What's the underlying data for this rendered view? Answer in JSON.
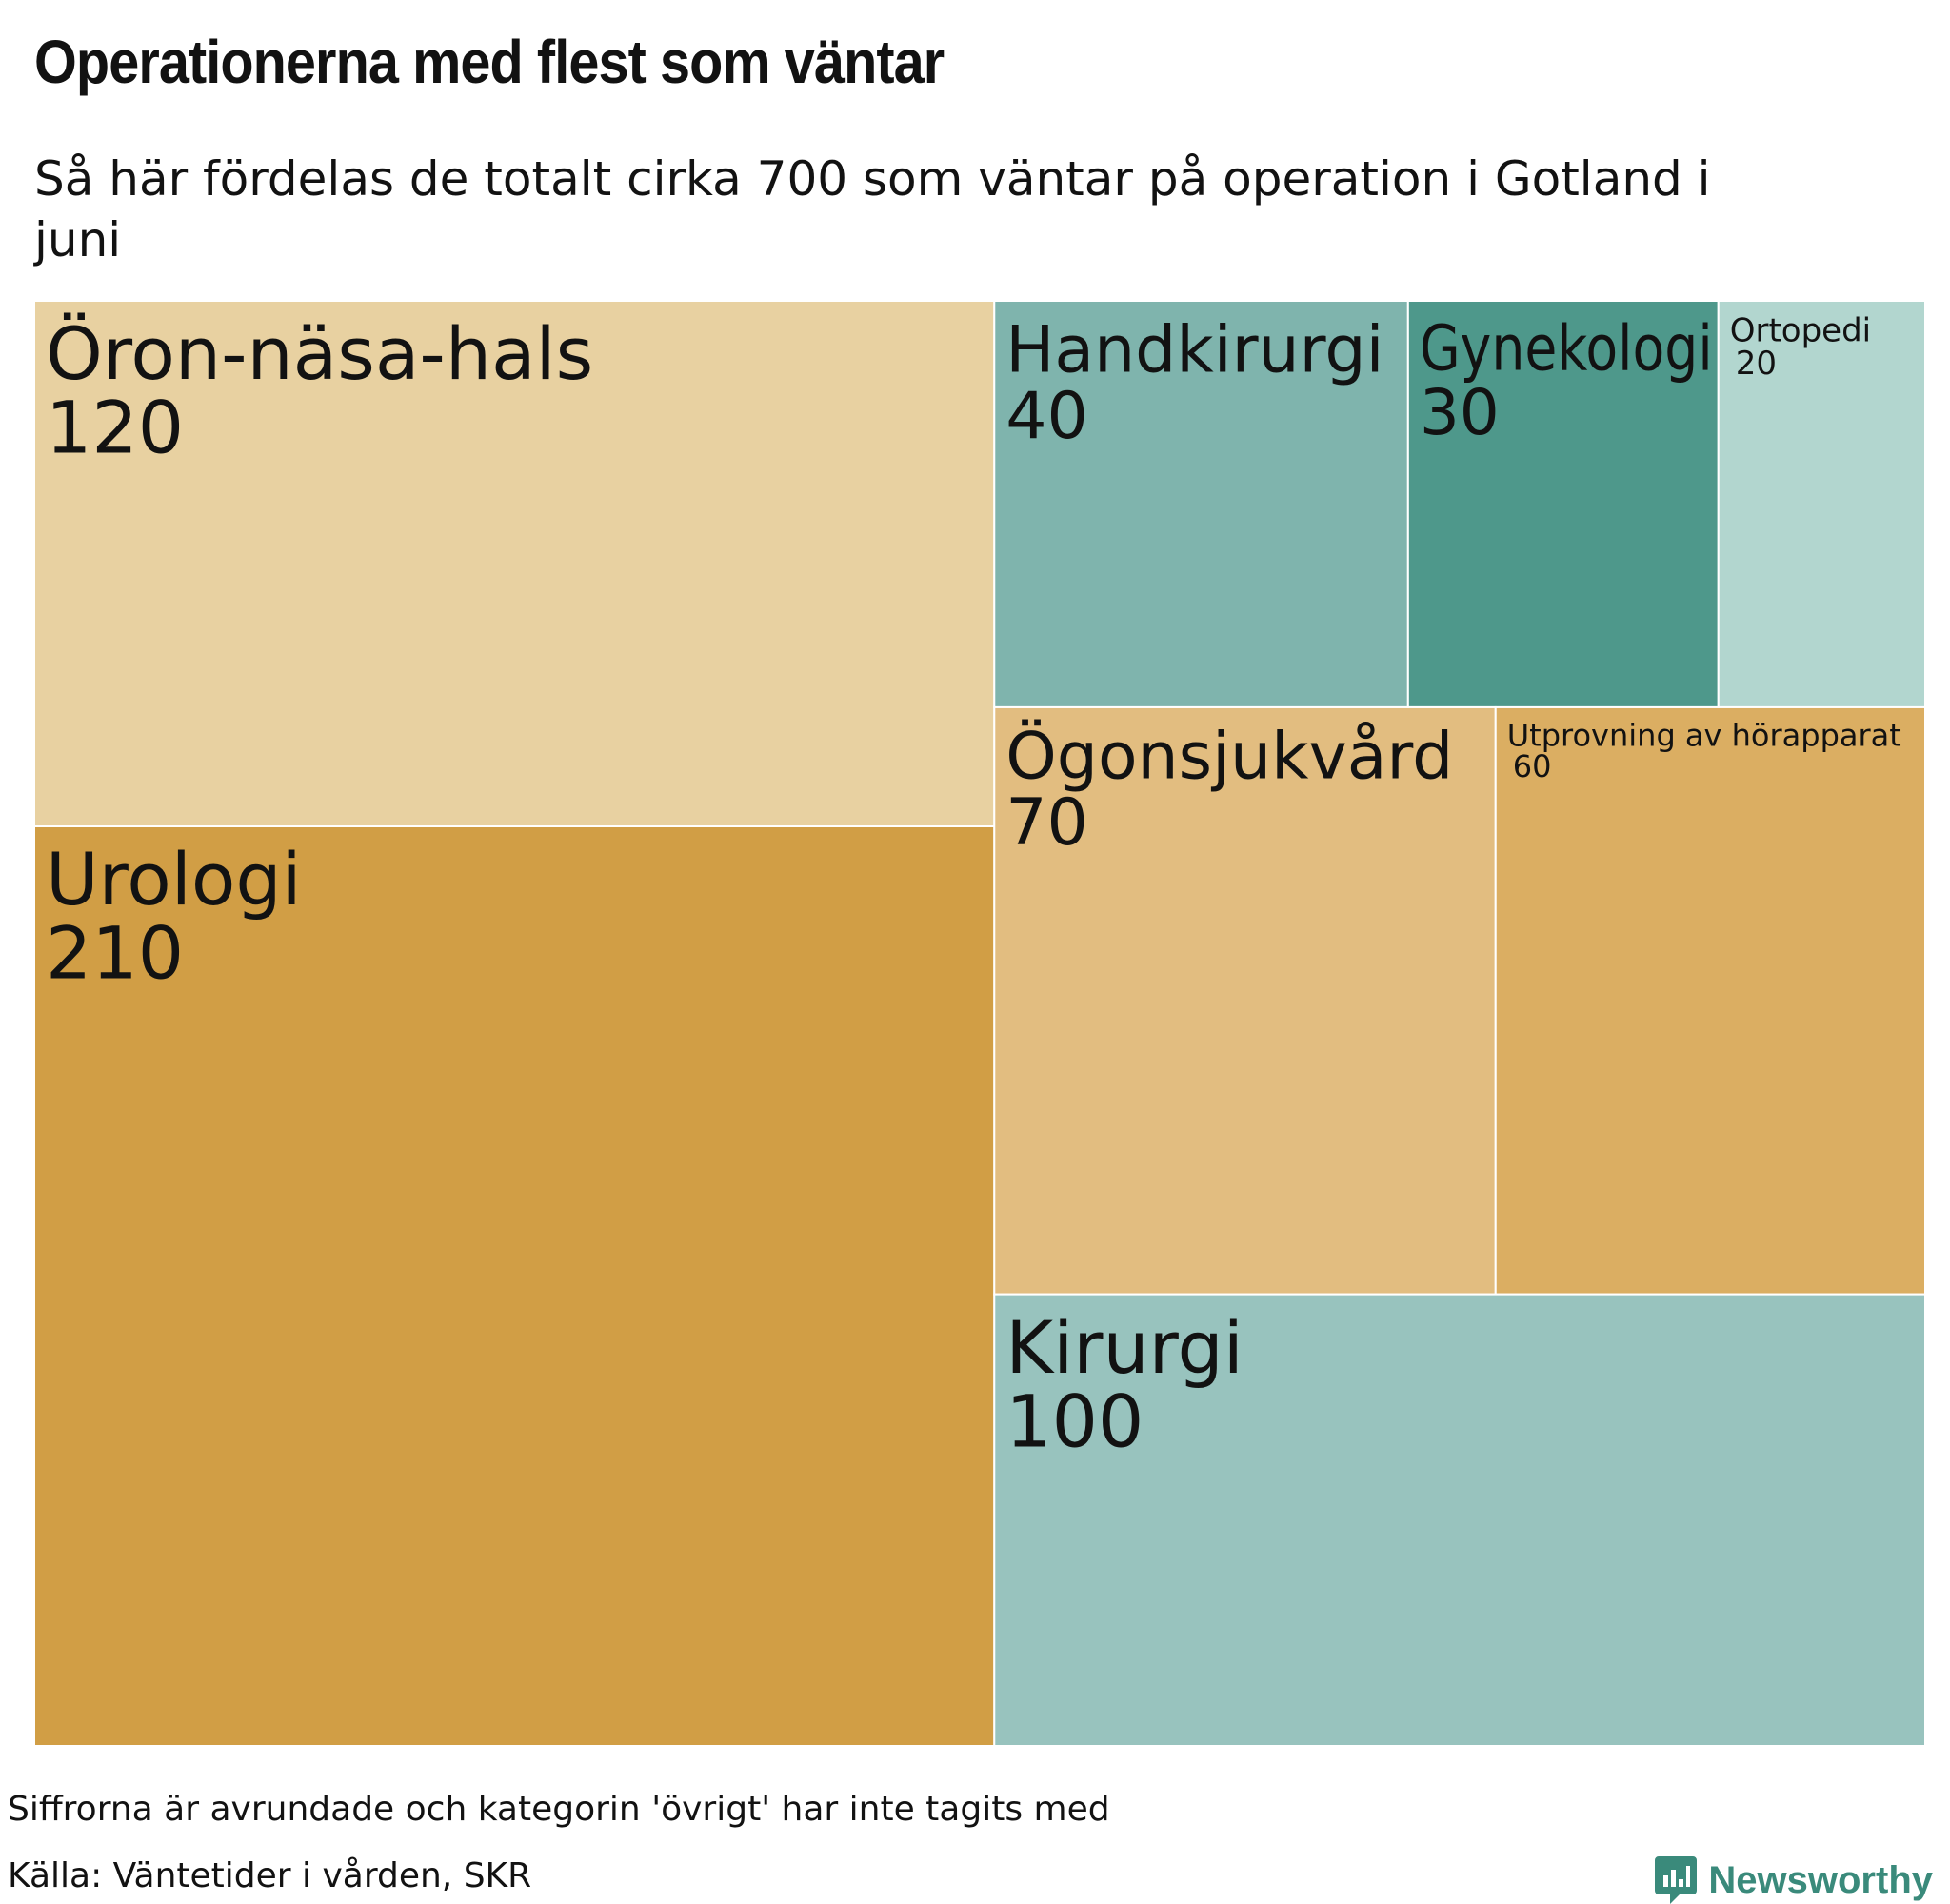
{
  "title": "Operationerna med flest som väntar",
  "subtitle": "Så här fördelas de totalt cirka 700 som väntar på operation i Gotland i juni",
  "chart_data": {
    "type": "treemap",
    "items": [
      {
        "name": "Öron-näsa-hals",
        "value": 120,
        "color": "#e8d1a1"
      },
      {
        "name": "Urologi",
        "value": 210,
        "color": "#d19e45"
      },
      {
        "name": "Handkirurgi",
        "value": 40,
        "color": "#7fb4ad"
      },
      {
        "name": "Gynekologi",
        "value": 30,
        "color": "#4e988b"
      },
      {
        "name": "Ortopedi",
        "value": 20,
        "color": "#b2d6cf"
      },
      {
        "name": "Ögonsjukvård",
        "value": 70,
        "color": "#e2bd80"
      },
      {
        "name": "Utprovning av hörapparat",
        "value": 60,
        "color": "#dbae62"
      },
      {
        "name": "Kirurgi",
        "value": 100,
        "color": "#98c3be"
      }
    ]
  },
  "footnote": "Siffrorna är avrundade och kategorin 'övrigt' har inte tagits med",
  "source": "Källa: Väntetider i vården, SKR",
  "brand": {
    "name": "Newsworthy",
    "color": "#3a8a7b",
    "icon": "newsworthy-logo-icon"
  }
}
